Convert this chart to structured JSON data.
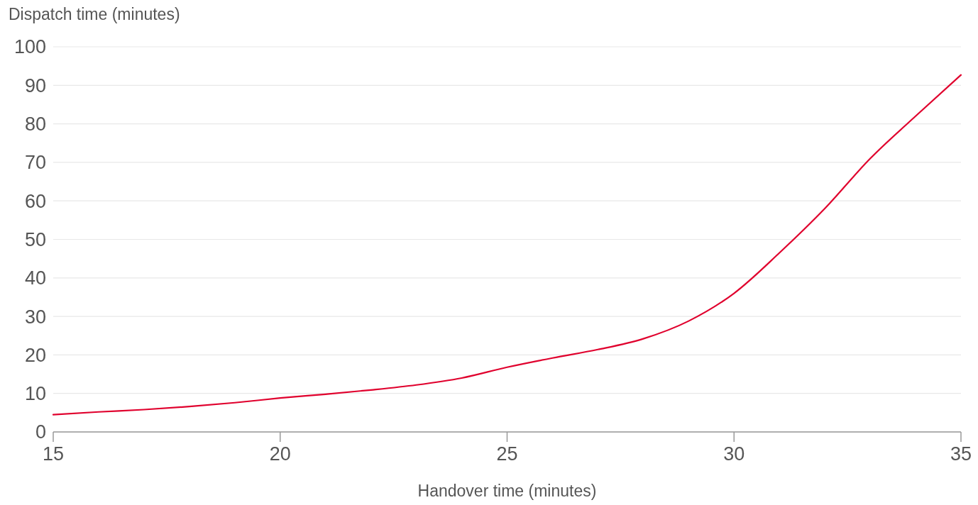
{
  "chart_data": {
    "type": "line",
    "xlabel": "Handover time (minutes)",
    "ylabel": "Dispatch time (minutes)",
    "x": [
      15,
      16,
      17,
      18,
      19,
      20,
      21,
      22,
      23,
      24,
      25,
      26,
      27,
      28,
      29,
      30,
      31,
      32,
      33,
      34,
      35
    ],
    "series": [
      {
        "color": "#e0002d",
        "values": [
          4.5,
          5.2,
          5.8,
          6.6,
          7.6,
          8.8,
          9.8,
          10.9,
          12.2,
          14,
          16.8,
          19.2,
          21.4,
          24.2,
          28.8,
          36,
          46.5,
          58,
          71,
          82,
          92.7
        ]
      }
    ],
    "xlim": [
      15,
      35
    ],
    "xticks": [
      15,
      20,
      25,
      30,
      35
    ],
    "ylim": [
      0,
      100
    ],
    "yticks": [
      0,
      10,
      20,
      30,
      40,
      50,
      60,
      70,
      80,
      90,
      100
    ],
    "grid": "y",
    "marker": "none",
    "line_style": "solid"
  }
}
